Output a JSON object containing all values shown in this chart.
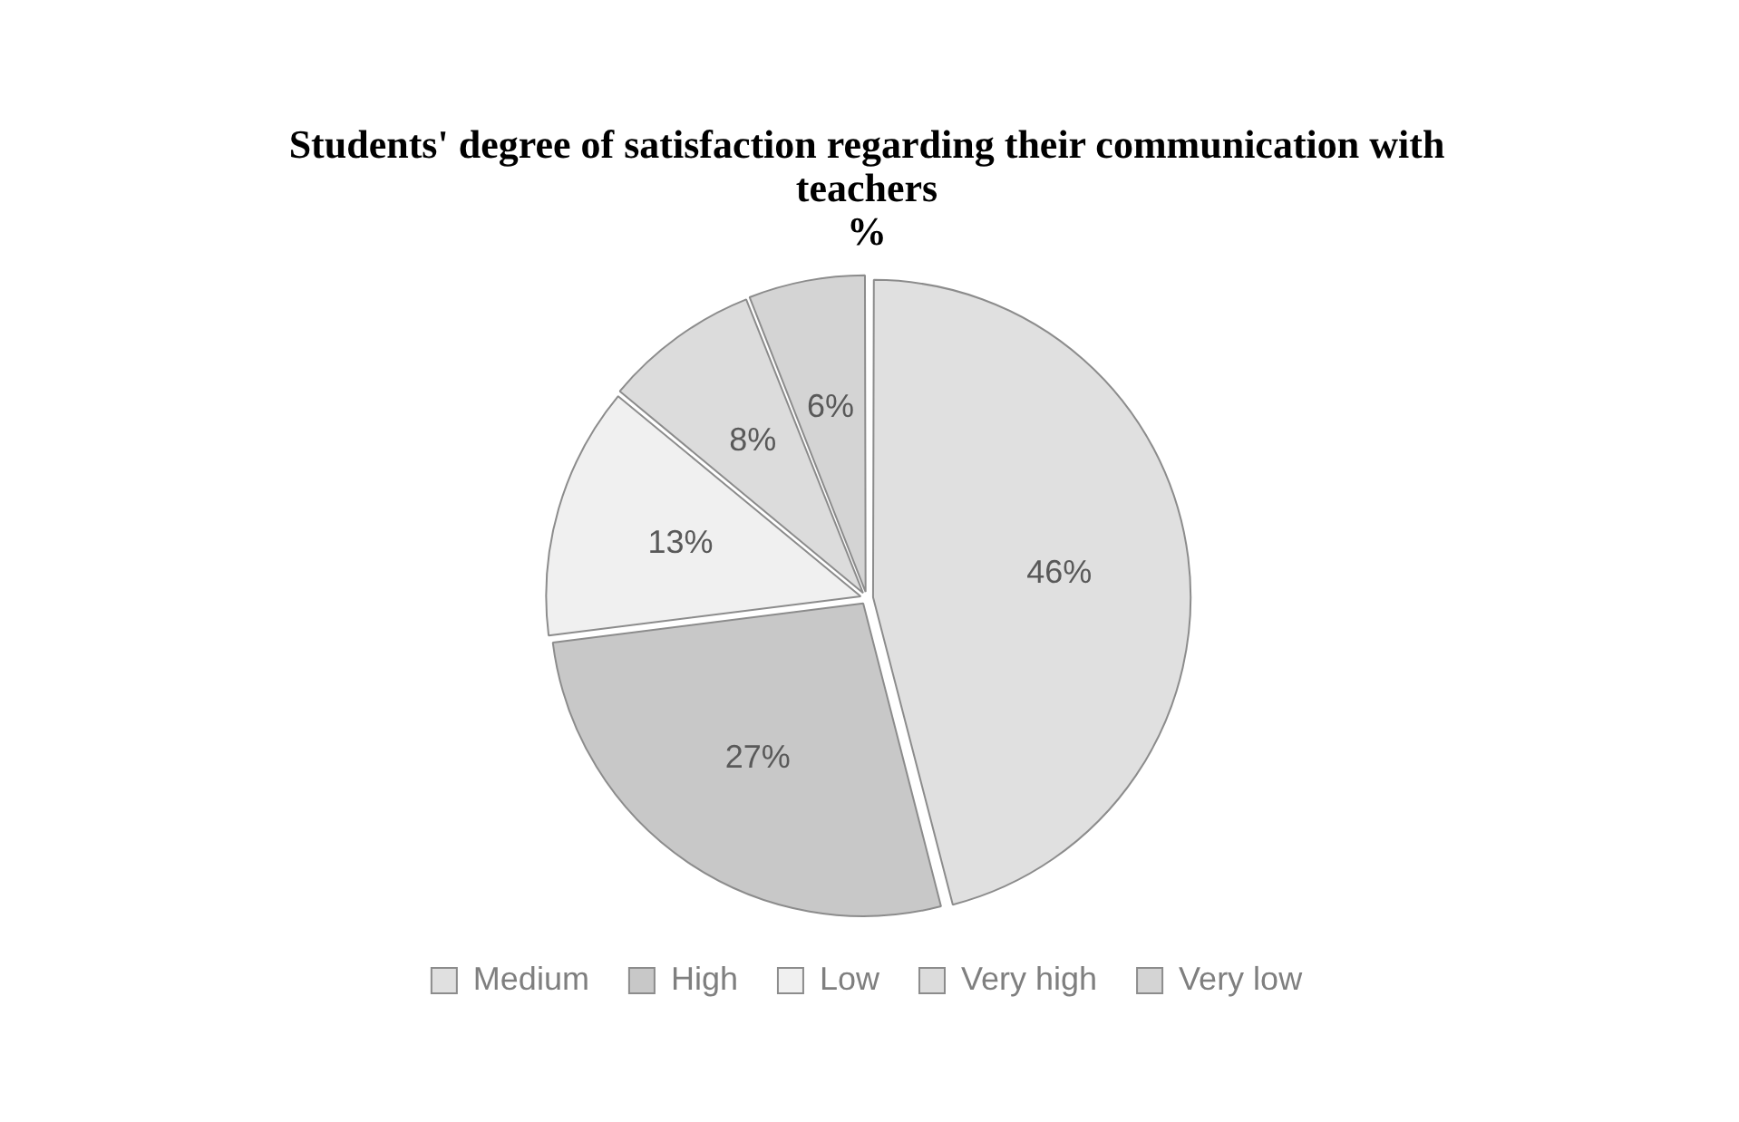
{
  "chart_data": {
    "type": "pie",
    "title": "Students' degree of satisfaction regarding their communication with teachers",
    "subtitle": "%",
    "categories": [
      "Medium",
      "High",
      "Low",
      "Very high",
      "Very low"
    ],
    "values": [
      46,
      27,
      13,
      8,
      6
    ],
    "value_labels": [
      "46%",
      "27%",
      "13%",
      "8%",
      "6%"
    ],
    "colors": [
      "#e0e0e0",
      "#c8c8c8",
      "#f0f0f0",
      "#dcdcdc",
      "#d4d4d4"
    ],
    "legend": "bottom"
  }
}
